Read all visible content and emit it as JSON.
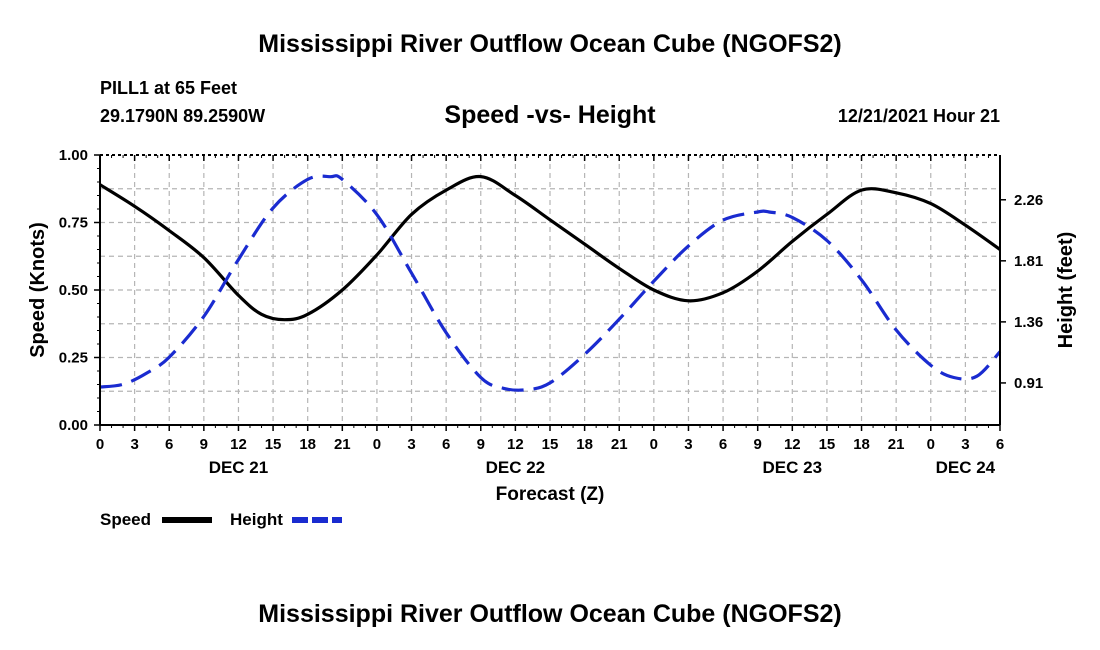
{
  "header": {
    "title": "Mississippi River Outflow Ocean Cube (NGOFS2)",
    "station": "PILL1 at 65 Feet",
    "coords": "29.1790N  89.2590W",
    "subtitle": "Speed -vs- Height",
    "timestamp": "12/21/2021 Hour 21"
  },
  "footer": {
    "title": "Mississippi River Outflow Ocean Cube (NGOFS2)"
  },
  "chart_data": {
    "type": "line",
    "title": "Speed -vs- Height",
    "xlabel": "Forecast (Z)",
    "ylabel": "Speed (Knots)",
    "y2label": "Height (feet)",
    "xlim": [
      0,
      78
    ],
    "ylim": [
      0,
      1.0
    ],
    "y2lim": [
      0.6,
      2.59
    ],
    "yticks": [
      0,
      0.25,
      0.5,
      0.75,
      1.0
    ],
    "ytick_labels": [
      "0.00",
      "0.25",
      "0.50",
      "0.75",
      "1.00"
    ],
    "y2ticks": [
      0.91,
      1.36,
      1.81,
      2.26
    ],
    "y2tick_labels": [
      "0.91",
      "1.36",
      "1.81",
      "2.26"
    ],
    "xticks": [
      0,
      3,
      6,
      9,
      12,
      15,
      18,
      21,
      24,
      27,
      30,
      33,
      36,
      39,
      42,
      45,
      48,
      51,
      54,
      57,
      60,
      63,
      66,
      69,
      72,
      75,
      78
    ],
    "xtick_labels": [
      "0",
      "3",
      "6",
      "9",
      "12",
      "15",
      "18",
      "21",
      "0",
      "3",
      "6",
      "9",
      "12",
      "15",
      "18",
      "21",
      "0",
      "3",
      "6",
      "9",
      "12",
      "15",
      "18",
      "21",
      "0",
      "3",
      "6"
    ],
    "date_labels": [
      {
        "x": 12,
        "label": "DEC 21"
      },
      {
        "x": 36,
        "label": "DEC 22"
      },
      {
        "x": 60,
        "label": "DEC 23"
      },
      {
        "x": 75,
        "label": "DEC 24"
      }
    ],
    "grid": true,
    "series": [
      {
        "name": "Speed",
        "axis": "left",
        "color": "#000000",
        "style": "solid",
        "x": [
          0,
          3,
          6,
          9,
          12,
          14,
          16,
          18,
          21,
          24,
          27,
          30,
          33,
          36,
          39,
          42,
          45,
          48,
          51,
          54,
          57,
          60,
          63,
          66,
          69,
          72,
          75,
          78
        ],
        "values": [
          0.89,
          0.81,
          0.72,
          0.62,
          0.48,
          0.41,
          0.39,
          0.41,
          0.5,
          0.63,
          0.78,
          0.87,
          0.92,
          0.85,
          0.76,
          0.67,
          0.58,
          0.5,
          0.46,
          0.49,
          0.57,
          0.68,
          0.78,
          0.87,
          0.86,
          0.82,
          0.74,
          0.65
        ]
      },
      {
        "name": "Height",
        "axis": "right",
        "color": "#1a2bd0",
        "style": "dashed",
        "x": [
          0,
          2,
          4,
          6,
          9,
          12,
          15,
          18,
          20,
          21,
          24,
          27,
          30,
          33,
          35,
          37,
          39,
          42,
          45,
          48,
          51,
          54,
          57,
          58,
          60,
          63,
          66,
          69,
          72,
          74,
          76,
          78
        ],
        "values": [
          0.88,
          0.9,
          0.98,
          1.1,
          1.4,
          1.82,
          2.2,
          2.41,
          2.43,
          2.41,
          2.15,
          1.72,
          1.28,
          0.95,
          0.87,
          0.86,
          0.91,
          1.12,
          1.38,
          1.66,
          1.92,
          2.11,
          2.17,
          2.17,
          2.13,
          1.96,
          1.67,
          1.3,
          1.04,
          0.95,
          0.96,
          1.14
        ]
      }
    ],
    "legend": [
      {
        "label": "Speed",
        "color": "#000000",
        "style": "solid"
      },
      {
        "label": "Height",
        "color": "#1a2bd0",
        "style": "dashed"
      }
    ]
  }
}
